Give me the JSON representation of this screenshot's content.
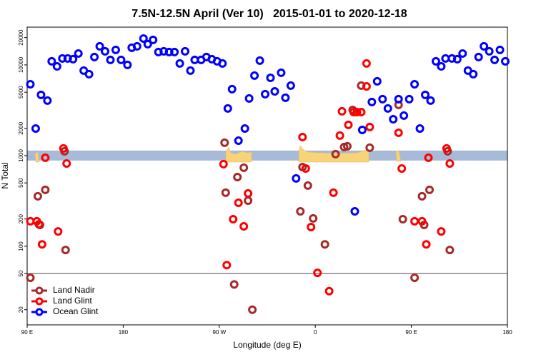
{
  "chart_data": {
    "type": "scatter",
    "title": "7.5N-12.5N April (Ver 10)   2015-01-01 to 2020-12-18",
    "x_label": "Longitude (deg E)",
    "y_label": "N Total",
    "xlim": [
      90,
      540
    ],
    "xticks": [
      {
        "value": 90,
        "label": "90 E"
      },
      180,
      {
        "value": 270,
        "label": "90 W"
      },
      {
        "value": 360,
        "label": "0"
      },
      {
        "value": 450,
        "label": "90 E"
      },
      {
        "value": 540,
        "label": "180"
      }
    ],
    "ylim": [
      13.6,
      26100
    ],
    "yticks": [
      20,
      50,
      100,
      200,
      500,
      1000,
      2000,
      5000,
      10000,
      20000
    ],
    "log_y": true,
    "legend": "lower left",
    "reference_lines": [
      {
        "value": 1000,
        "color": "#a7bbd8"
      },
      {
        "value": 50,
        "color": "#888888"
      }
    ],
    "series": [
      {
        "name": "Land Nadir",
        "color": "#a52a2a",
        "x": [
          93,
          100,
          102,
          107,
          125,
          126,
          275,
          276,
          284,
          287,
          293,
          297,
          301,
          346,
          348,
          353,
          358,
          369,
          379,
          387,
          390,
          395,
          403,
          411,
          438,
          442,
          453,
          460,
          462,
          467,
          484,
          486
        ],
        "values": [
          45,
          356,
          172,
          419,
          1115,
          91,
          1386,
          390,
          38,
          580,
          735,
          319,
          20,
          243,
          748,
          467,
          203,
          105,
          1037,
          1243,
          1266,
          3190,
          5910,
          1221,
          3625,
          199,
          45,
          356,
          172,
          419,
          1115,
          91
        ]
      },
      {
        "name": "Land Glint",
        "color": "#ff0000",
        "x": [
          93,
          99,
          101,
          104,
          107,
          119,
          124,
          127,
          274,
          277,
          283,
          288,
          293,
          297,
          348,
          351,
          356,
          362,
          373,
          377,
          383,
          385,
          391,
          396,
          399,
          403,
          408,
          408,
          411,
          438,
          441,
          453,
          460,
          464,
          466,
          478,
          483,
          486
        ],
        "values": [
          189,
          189,
          175,
          105,
          947,
          146,
          1199,
          819,
          805,
          62,
          199,
          302,
          166,
          383,
          1602,
          721,
          163,
          51,
          32,
          390,
          1662,
          3077,
          2181,
          3020,
          3020,
          3020,
          10370,
          5800,
          2065,
          1786,
          721,
          189,
          189,
          105,
          947,
          146,
          1199,
          819
        ]
      },
      {
        "name": "Ocean Glint",
        "color": "#0000ff",
        "x": [
          93,
          98,
          103,
          109,
          113,
          118,
          123,
          128,
          133,
          138,
          143,
          148,
          153,
          158,
          163,
          168,
          173,
          178,
          184,
          188,
          193,
          199,
          203,
          208,
          213,
          218,
          223,
          228,
          233,
          238,
          243,
          247,
          253,
          258,
          263,
          268,
          273,
          278,
          282,
          288,
          294,
          298,
          303,
          308,
          313,
          318,
          322,
          328,
          332,
          337,
          342,
          397,
          404,
          413,
          418,
          423,
          428,
          433,
          438,
          443,
          448,
          453,
          458,
          463,
          468,
          473,
          478,
          482,
          488,
          493,
          498,
          503,
          508,
          513,
          518,
          523,
          528,
          533,
          538
        ],
        "values": [
          6120,
          1990,
          4670,
          4040,
          10950,
          9640,
          11780,
          11780,
          11560,
          13360,
          8650,
          7900,
          12210,
          16030,
          14120,
          11350,
          14630,
          11350,
          10000,
          15450,
          16030,
          19550,
          16920,
          18870,
          13860,
          14120,
          13860,
          13860,
          10370,
          14120,
          8650,
          11350,
          11350,
          12210,
          11560,
          10950,
          10370,
          3310,
          5400,
          1460,
          1990,
          4270,
          7620,
          11150,
          4760,
          7210,
          5110,
          8190,
          4350,
          5910,
          560,
          243,
          1920,
          3900,
          6590,
          4190,
          3310,
          2520,
          4190,
          2760,
          4190,
          6120,
          1990,
          4670,
          4040,
          10950,
          9640,
          11780,
          11780,
          11560,
          13360,
          8650,
          7900,
          12210,
          16030,
          14120,
          11350,
          14630,
          10950
        ]
      }
    ]
  }
}
